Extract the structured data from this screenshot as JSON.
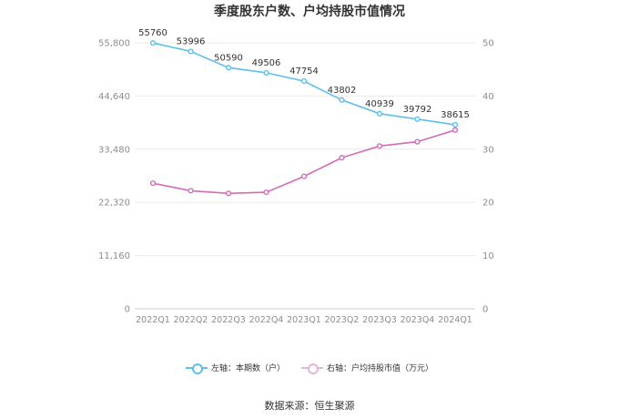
{
  "colors": {
    "left_series": "#5bc0eb",
    "right_series": "#d56bb8",
    "axis_text": "#8c8c8c",
    "grid": "#e9e9e9"
  },
  "chart_data": {
    "type": "line",
    "title": "季度股东户数、户均持股市值情况",
    "categories": [
      "2022Q1",
      "2022Q2",
      "2022Q3",
      "2022Q4",
      "2023Q1",
      "2023Q2",
      "2023Q3",
      "2023Q4",
      "2024Q1"
    ],
    "left_axis": {
      "ticks": [
        "0",
        "11,160",
        "22,320",
        "33,480",
        "44,640",
        "55,800"
      ],
      "ylim": [
        0,
        55800
      ]
    },
    "right_axis": {
      "ticks": [
        "0",
        "10",
        "20",
        "30",
        "40",
        "50"
      ],
      "ylim": [
        0,
        50
      ]
    },
    "series": [
      {
        "name": "左轴：本期数（户）",
        "axis": "left",
        "values": [
          55760,
          53996,
          50590,
          49506,
          47754,
          43802,
          40939,
          39792,
          38615
        ],
        "labels": [
          "55760",
          "53996",
          "50590",
          "49506",
          "47754",
          "43802",
          "40939",
          "39792",
          "38615"
        ]
      },
      {
        "name": "右轴：户均持股市值（万元）",
        "axis": "right",
        "values": [
          23.6,
          22.2,
          21.7,
          21.9,
          24.9,
          28.4,
          30.6,
          31.4,
          33.6
        ]
      }
    ],
    "grid": true,
    "legend": "bottom-center"
  },
  "source": "数据来源：恒生聚源"
}
